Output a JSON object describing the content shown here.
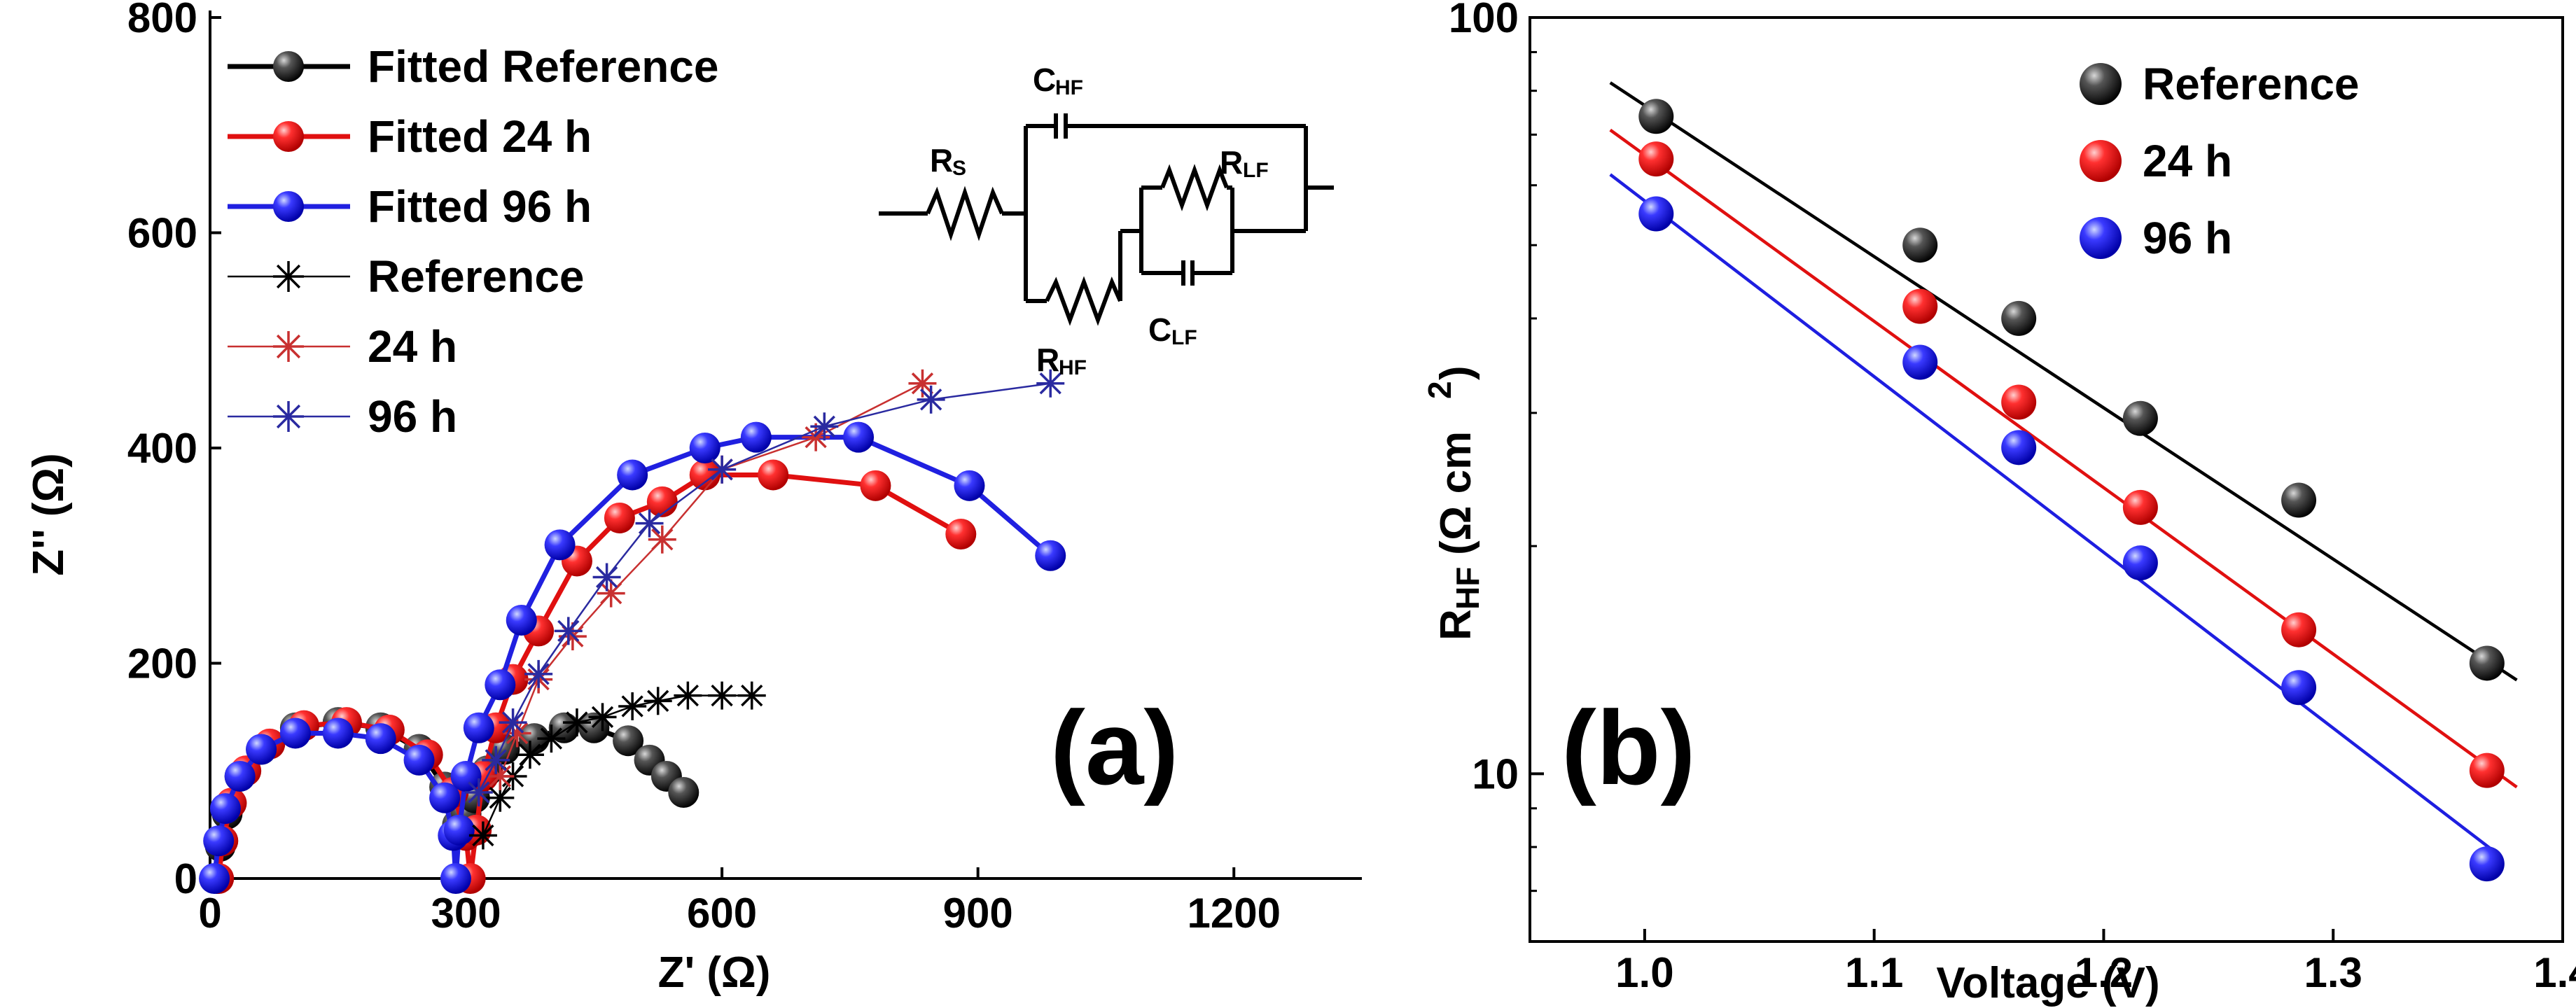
{
  "chart_data": [
    {
      "panel": "(a)",
      "type": "scatter",
      "xlabel": "Z' (Ω)",
      "ylabel": "Z'' (Ω)",
      "xlim": [
        0,
        1350
      ],
      "ylim": [
        0,
        800
      ],
      "xticks": [
        0,
        300,
        600,
        900,
        1200
      ],
      "yticks": [
        0,
        200,
        400,
        600,
        800
      ],
      "legend_position": "top-left",
      "series": [
        {
          "name": "Fitted Reference",
          "style": "line-dot",
          "color": "#000000",
          "x": [
            8,
            12,
            20,
            35,
            60,
            100,
            150,
            200,
            245,
            275,
            290,
            300,
            310,
            325,
            345,
            380,
            415,
            450,
            490,
            515,
            535,
            555
          ],
          "y": [
            0,
            30,
            60,
            95,
            120,
            140,
            145,
            140,
            120,
            85,
            50,
            60,
            75,
            100,
            120,
            130,
            140,
            140,
            128,
            110,
            95,
            80
          ]
        },
        {
          "name": "Fitted 24 h",
          "style": "line-dot",
          "color": "#e01010",
          "x": [
            10,
            15,
            25,
            42,
            70,
            110,
            160,
            210,
            255,
            285,
            300,
            305,
            312,
            320,
            335,
            355,
            385,
            430,
            480,
            530,
            580,
            660,
            780,
            880
          ],
          "y": [
            0,
            35,
            70,
            100,
            125,
            142,
            145,
            138,
            115,
            80,
            40,
            0,
            45,
            95,
            140,
            185,
            230,
            295,
            335,
            350,
            375,
            375,
            365,
            320
          ]
        },
        {
          "name": "Fitted 96 h",
          "style": "line-dot",
          "color": "#2020e0",
          "x": [
            5,
            10,
            18,
            35,
            60,
            100,
            150,
            200,
            245,
            275,
            285,
            288,
            292,
            300,
            315,
            340,
            365,
            410,
            495,
            580,
            640,
            760,
            890,
            985
          ],
          "y": [
            0,
            35,
            65,
            95,
            120,
            135,
            135,
            130,
            110,
            75,
            40,
            0,
            45,
            95,
            140,
            180,
            240,
            310,
            375,
            400,
            410,
            410,
            365,
            300
          ]
        },
        {
          "name": "Reference",
          "style": "line-star",
          "color": "#000000",
          "x": [
            320,
            340,
            355,
            375,
            400,
            430,
            460,
            495,
            525,
            560,
            600,
            635
          ],
          "y": [
            40,
            75,
            95,
            115,
            130,
            145,
            150,
            160,
            165,
            170,
            170,
            170
          ]
        },
        {
          "name": "24 h",
          "style": "line-star",
          "color": "#c83030",
          "x": [
            340,
            360,
            385,
            425,
            470,
            530,
            600,
            710,
            835
          ],
          "y": [
            95,
            135,
            185,
            225,
            265,
            315,
            380,
            410,
            460
          ]
        },
        {
          "name": "96 h",
          "style": "line-star",
          "color": "#2a2aa0",
          "x": [
            315,
            335,
            355,
            385,
            420,
            465,
            515,
            600,
            720,
            845,
            985
          ],
          "y": [
            80,
            110,
            145,
            190,
            230,
            280,
            330,
            380,
            420,
            445,
            460
          ]
        }
      ],
      "circuit_labels": {
        "rs": "R",
        "rs_sub": "S",
        "chf": "C",
        "chf_sub": "HF",
        "rhf": "R",
        "rhf_sub": "HF",
        "rlf": "R",
        "rlf_sub": "LF",
        "clf": "C",
        "clf_sub": "LF"
      }
    },
    {
      "panel": "(b)",
      "type": "scatter",
      "xlabel": "Voltage (V)",
      "ylabel_main": "R",
      "ylabel_sub": "HF",
      "ylabel_unit": "(Ω cm",
      "ylabel_sup": "2",
      "ylabel_close": ")",
      "yscale": "log",
      "xlim": [
        0.95,
        1.4
      ],
      "ylim": [
        6,
        100
      ],
      "xticks": [
        1.0,
        1.1,
        1.2,
        1.3,
        1.4
      ],
      "yticks": [
        10,
        100
      ],
      "legend_position": "top-right",
      "series": [
        {
          "name": "Reference",
          "color": "#000000",
          "x": [
            1.005,
            1.12,
            1.163,
            1.216,
            1.285,
            1.367
          ],
          "y": [
            74,
            50,
            40,
            29.5,
            23,
            14
          ],
          "fit": {
            "x": [
              0.985,
              1.38
            ],
            "y": [
              82,
              13.3
            ]
          }
        },
        {
          "name": "24  h",
          "color": "#e01010",
          "x": [
            1.005,
            1.12,
            1.163,
            1.216,
            1.285,
            1.367
          ],
          "y": [
            65,
            41.5,
            31,
            22.5,
            15.5,
            10.1
          ],
          "fit": {
            "x": [
              0.985,
              1.38
            ],
            "y": [
              71,
              9.6
            ]
          }
        },
        {
          "name": "96  h",
          "color": "#1e1ee0",
          "x": [
            1.005,
            1.12,
            1.163,
            1.216,
            1.285,
            1.367
          ],
          "y": [
            55,
            35,
            27,
            19,
            13,
            7.6
          ],
          "fit": {
            "x": [
              0.985,
              1.37
            ],
            "y": [
              62,
              7.9
            ]
          }
        }
      ]
    }
  ]
}
